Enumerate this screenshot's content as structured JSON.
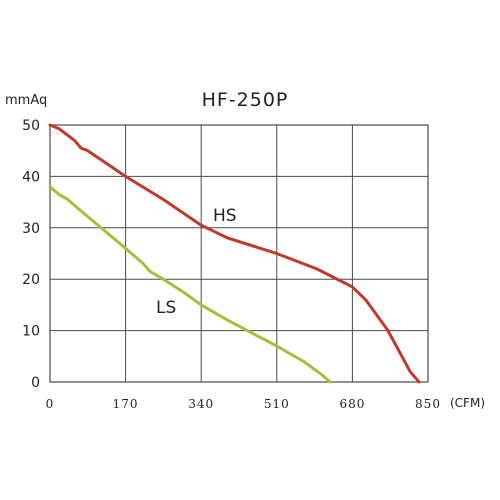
{
  "chart_data": {
    "type": "line",
    "title": "HF-250P",
    "ylabel": "mmAq",
    "xlabel": "(CFM)",
    "xlim": [
      0,
      850
    ],
    "ylim": [
      0,
      50
    ],
    "x_ticks": [
      "0",
      "170",
      "340",
      "510",
      "680",
      "850"
    ],
    "y_ticks": [
      "0",
      "10",
      "20",
      "30",
      "40",
      "50"
    ],
    "grid": true,
    "colors": {
      "HS": "#c0392b",
      "LS": "#9dc33b",
      "grid": "#4a4a4a"
    },
    "series": [
      {
        "name": "HS",
        "x": [
          0,
          20,
          40,
          55,
          70,
          85,
          170,
          255,
          340,
          400,
          510,
          600,
          680,
          710,
          760,
          810,
          830
        ],
        "y": [
          50,
          49.3,
          48,
          47,
          45.5,
          45,
          40,
          35.5,
          30.5,
          28,
          25,
          22,
          18.5,
          16,
          10,
          2,
          0
        ]
      },
      {
        "name": "LS",
        "x": [
          0,
          20,
          40,
          60,
          170,
          210,
          225,
          255,
          300,
          340,
          400,
          510,
          570,
          610,
          630
        ],
        "y": [
          38,
          36.5,
          35.5,
          34,
          26,
          23,
          21.5,
          20,
          17.5,
          15,
          12,
          7,
          4,
          1.5,
          0
        ]
      }
    ]
  }
}
